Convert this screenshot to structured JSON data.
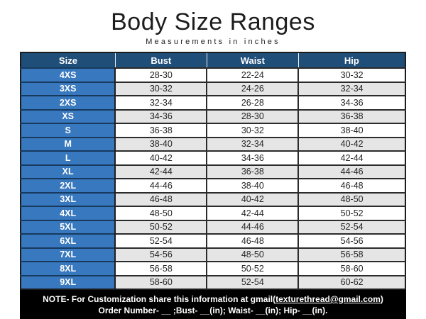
{
  "header": {
    "title": "Body Size Ranges",
    "subtitle": "Measurements in inches"
  },
  "table": {
    "columns": [
      "Size",
      "Bust",
      "Waist",
      "Hip"
    ],
    "rows": [
      {
        "size": "4XS",
        "bust": "28-30",
        "waist": "22-24",
        "hip": "30-32"
      },
      {
        "size": "3XS",
        "bust": "30-32",
        "waist": "24-26",
        "hip": "32-34"
      },
      {
        "size": "2XS",
        "bust": "32-34",
        "waist": "26-28",
        "hip": "34-36"
      },
      {
        "size": "XS",
        "bust": "34-36",
        "waist": "28-30",
        "hip": "36-38"
      },
      {
        "size": "S",
        "bust": "36-38",
        "waist": "30-32",
        "hip": "38-40"
      },
      {
        "size": "M",
        "bust": "38-40",
        "waist": "32-34",
        "hip": "40-42"
      },
      {
        "size": "L",
        "bust": "40-42",
        "waist": "34-36",
        "hip": "42-44"
      },
      {
        "size": "XL",
        "bust": "42-44",
        "waist": "36-38",
        "hip": "44-46"
      },
      {
        "size": "2XL",
        "bust": "44-46",
        "waist": "38-40",
        "hip": "46-48"
      },
      {
        "size": "3XL",
        "bust": "46-48",
        "waist": "40-42",
        "hip": "48-50"
      },
      {
        "size": "4XL",
        "bust": "48-50",
        "waist": "42-44",
        "hip": "50-52"
      },
      {
        "size": "5XL",
        "bust": "50-52",
        "waist": "44-46",
        "hip": "52-54"
      },
      {
        "size": "6XL",
        "bust": "52-54",
        "waist": "46-48",
        "hip": "54-56"
      },
      {
        "size": "7XL",
        "bust": "54-56",
        "waist": "48-50",
        "hip": "56-58"
      },
      {
        "size": "8XL",
        "bust": "56-58",
        "waist": "50-52",
        "hip": "58-60"
      },
      {
        "size": "9XL",
        "bust": "58-60",
        "waist": "52-54",
        "hip": "60-62"
      }
    ]
  },
  "footer": {
    "note_prefix": "NOTE- For Customization share this information at gmail(",
    "note_email": "texturethread@gmail.com",
    "note_suffix": ")",
    "order_line": "Order Number- __ ;Bust- __(in); Waist- __(in); Hip- __(in)."
  },
  "colors": {
    "header_bg": "#1F4E79",
    "size_col_bg": "#3878BE",
    "alt_row_bg": "#E5E5E5",
    "footer_bg": "#000000",
    "page_bg": "#FFFFFF"
  }
}
